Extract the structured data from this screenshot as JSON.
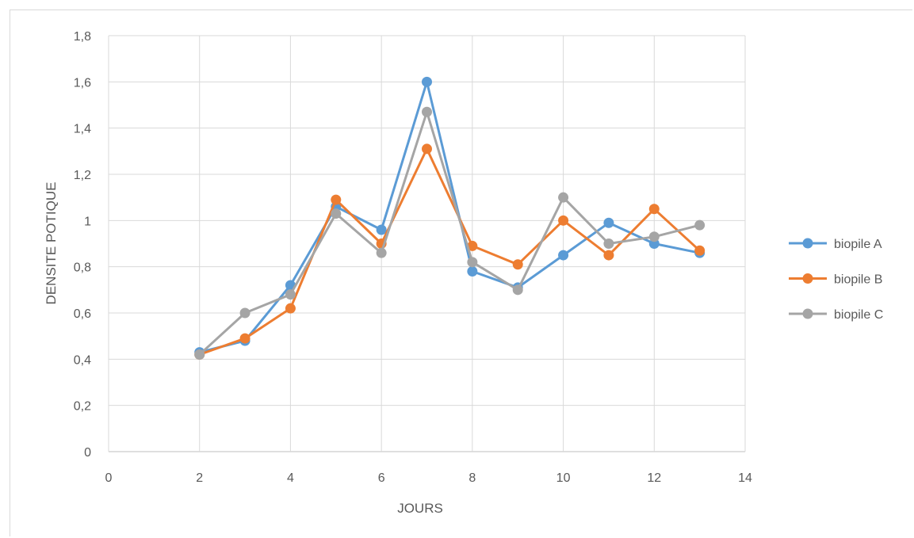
{
  "chart_data": {
    "type": "line",
    "title": "",
    "xlabel": "JOURS",
    "ylabel": "DENSITE POTIQUE",
    "xlim": [
      0,
      14
    ],
    "ylim": [
      0,
      1.8
    ],
    "x_ticks": [
      "0",
      "2",
      "4",
      "6",
      "8",
      "10",
      "12",
      "14"
    ],
    "y_ticks": [
      "0",
      "0,2",
      "0,4",
      "0,6",
      "0,8",
      "1",
      "1,2",
      "1,4",
      "1,6",
      "1,8"
    ],
    "grid": true,
    "legend_position": "right",
    "series": [
      {
        "name": "biopile A",
        "color": "#5b9bd5",
        "x": [
          2,
          3,
          4,
          5,
          6,
          7,
          8,
          9,
          10,
          11,
          12,
          13
        ],
        "y": [
          0.43,
          0.48,
          0.72,
          1.06,
          0.96,
          1.6,
          0.78,
          0.71,
          0.85,
          0.99,
          0.9,
          0.86
        ]
      },
      {
        "name": "biopile B",
        "color": "#ed7d31",
        "x": [
          2,
          3,
          4,
          5,
          6,
          7,
          8,
          9,
          10,
          11,
          12,
          13
        ],
        "y": [
          0.42,
          0.49,
          0.62,
          1.09,
          0.9,
          1.31,
          0.89,
          0.81,
          1.0,
          0.85,
          1.05,
          0.87
        ]
      },
      {
        "name": "biopile C",
        "color": "#a5a5a5",
        "x": [
          2,
          3,
          4,
          5,
          6,
          7,
          8,
          9,
          10,
          11,
          12,
          13
        ],
        "y": [
          0.42,
          0.6,
          0.68,
          1.03,
          0.86,
          1.47,
          0.82,
          0.7,
          1.1,
          0.9,
          0.93,
          0.98
        ]
      }
    ]
  }
}
